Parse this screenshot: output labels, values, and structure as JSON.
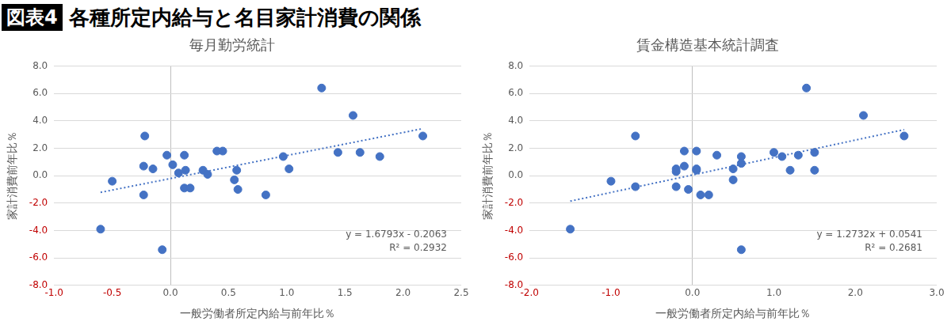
{
  "header": {
    "badge": "図表4",
    "title": "各種所定内給与と名目家計消費の関係"
  },
  "chart_data": [
    {
      "type": "scatter",
      "title": "毎月勤労統計",
      "x_label": "一般労働者所定内給与前年比％",
      "y_label": "家計消費前年比％",
      "color": "#4472c4",
      "marker": "circle",
      "grid": true,
      "x": [
        -0.6,
        -0.5,
        -0.22,
        -0.23,
        -0.23,
        -0.15,
        -0.07,
        -0.03,
        0.02,
        0.07,
        0.12,
        0.12,
        0.13,
        0.17,
        0.28,
        0.32,
        0.4,
        0.45,
        0.55,
        0.57,
        0.58,
        0.82,
        0.97,
        1.02,
        1.3,
        1.44,
        1.57,
        1.63,
        1.8,
        2.17
      ],
      "values": [
        -3.9,
        -0.4,
        2.9,
        0.7,
        -1.4,
        0.5,
        -5.4,
        1.5,
        0.8,
        0.2,
        1.5,
        -0.9,
        0.4,
        -0.9,
        0.4,
        0.1,
        1.8,
        1.8,
        -0.3,
        0.4,
        -1.0,
        -1.4,
        1.4,
        0.5,
        6.4,
        1.7,
        4.4,
        1.7,
        1.4,
        2.9
      ],
      "xlim": [
        -1.0,
        2.5
      ],
      "xticks": [
        {
          "value": -1.0,
          "label": "-1.0"
        },
        {
          "value": -0.5,
          "label": "-0.5"
        },
        {
          "value": 0,
          "label": "0.0"
        },
        {
          "value": 0.5,
          "label": "0.5"
        },
        {
          "value": 1.0,
          "label": "1.0"
        },
        {
          "value": 1.5,
          "label": "1.5"
        },
        {
          "value": 2.0,
          "label": "2.0"
        },
        {
          "value": 2.5,
          "label": "2.5"
        }
      ],
      "ylim": [
        -8,
        8
      ],
      "yticks": [
        {
          "value": -8,
          "label": "-8.0"
        },
        {
          "value": -6,
          "label": "-6.0"
        },
        {
          "value": -4,
          "label": "-4.0"
        },
        {
          "value": -2,
          "label": "-2.0"
        },
        {
          "value": 0,
          "label": "0.0"
        },
        {
          "value": 2,
          "label": "2.0"
        },
        {
          "value": 4,
          "label": "4.0"
        },
        {
          "value": 6,
          "label": "6.0"
        },
        {
          "value": 8,
          "label": "8.0"
        }
      ],
      "trendline": {
        "slope": 1.6793,
        "intercept": -0.2063,
        "line_style": "dotted",
        "equation": "y = 1.6793x - 0.2063",
        "r2_label": "R² = 0.2932"
      }
    },
    {
      "type": "scatter",
      "title": "賃金構造基本統計調査",
      "x_label": "一般労働者所定内給与前年比％",
      "y_label": "家計消費前年比％",
      "color": "#4472c4",
      "marker": "circle",
      "grid": true,
      "x": [
        -1.5,
        -1.0,
        -0.7,
        -0.7,
        -0.2,
        -0.2,
        -0.2,
        -0.1,
        -0.1,
        -0.05,
        0.05,
        0.05,
        0.05,
        0.1,
        0.2,
        0.3,
        0.5,
        0.5,
        0.6,
        0.6,
        0.6,
        1.0,
        1.1,
        1.2,
        1.3,
        1.4,
        1.5,
        1.5,
        2.1,
        2.6
      ],
      "values": [
        -3.9,
        -0.4,
        2.9,
        -0.8,
        0.5,
        0.3,
        -0.8,
        1.8,
        0.7,
        -1.0,
        1.8,
        0.5,
        0.4,
        -1.4,
        -1.4,
        1.5,
        0.5,
        -0.3,
        1.4,
        0.9,
        -5.4,
        1.7,
        1.4,
        0.4,
        1.5,
        6.4,
        1.7,
        0.4,
        4.4,
        2.9
      ],
      "xlim": [
        -2.0,
        3.0
      ],
      "xticks": [
        {
          "value": -2.0,
          "label": "-2.0"
        },
        {
          "value": -1.0,
          "label": "-1.0"
        },
        {
          "value": 0,
          "label": "0.0"
        },
        {
          "value": 1.0,
          "label": "1.0"
        },
        {
          "value": 2.0,
          "label": "2.0"
        },
        {
          "value": 3.0,
          "label": "3.0"
        }
      ],
      "ylim": [
        -8,
        8
      ],
      "yticks": [
        {
          "value": -8,
          "label": "-8.0"
        },
        {
          "value": -6,
          "label": "-6.0"
        },
        {
          "value": -4,
          "label": "-4.0"
        },
        {
          "value": -2,
          "label": "-2.0"
        },
        {
          "value": 0,
          "label": "0.0"
        },
        {
          "value": 2,
          "label": "2.0"
        },
        {
          "value": 4,
          "label": "4.0"
        },
        {
          "value": 6,
          "label": "6.0"
        },
        {
          "value": 8,
          "label": "8.0"
        }
      ],
      "trendline": {
        "slope": 1.2732,
        "intercept": 0.0541,
        "line_style": "dotted",
        "equation": "y = 1.2732x + 0.0541",
        "r2_label": "R² = 0.2681"
      }
    }
  ]
}
